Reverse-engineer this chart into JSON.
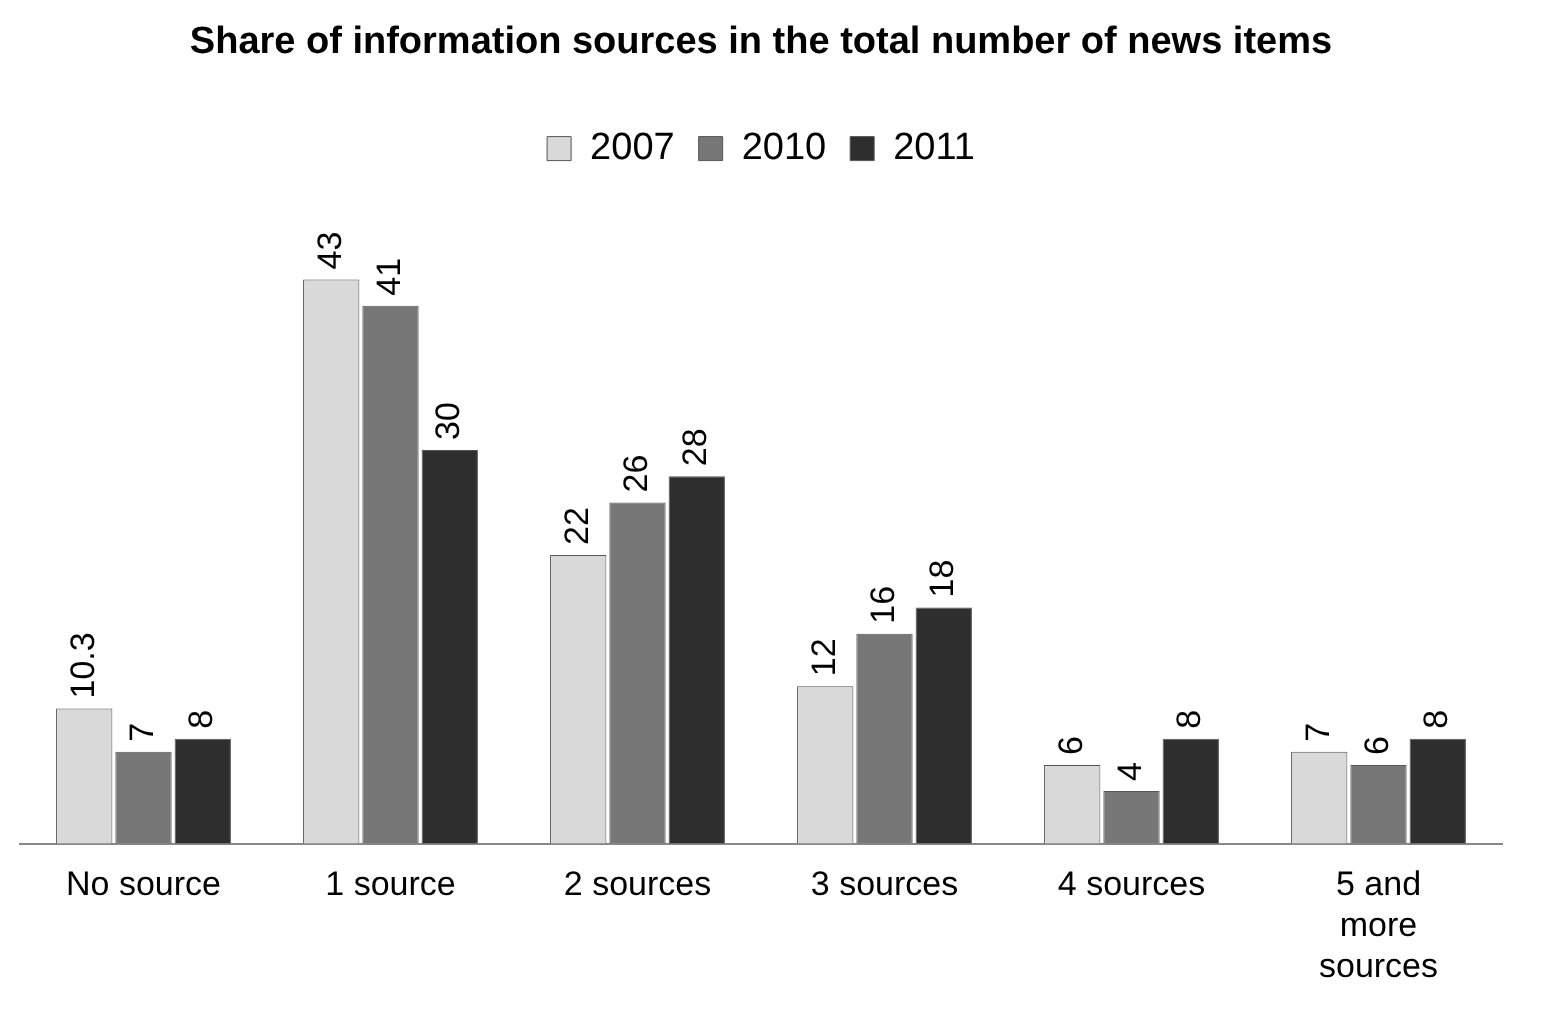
{
  "chart_data": {
    "type": "bar",
    "title": "Share of information sources in the total number of news items",
    "categories": [
      "No source",
      "1 source",
      "2 sources",
      "3 sources",
      "4 sources",
      "5 and more sources"
    ],
    "series": [
      {
        "name": "2007",
        "color": "#d9d9d9",
        "values": [
          10.3,
          43,
          22,
          12,
          6,
          7
        ]
      },
      {
        "name": "2010",
        "color": "#777777",
        "values": [
          7,
          41,
          26,
          16,
          4,
          6
        ]
      },
      {
        "name": "2011",
        "color": "#2e2e2e",
        "values": [
          8,
          30,
          28,
          18,
          8,
          8
        ]
      }
    ],
    "data_labels": true,
    "legend": "top",
    "grid": false,
    "tick_labels": "x"
  }
}
